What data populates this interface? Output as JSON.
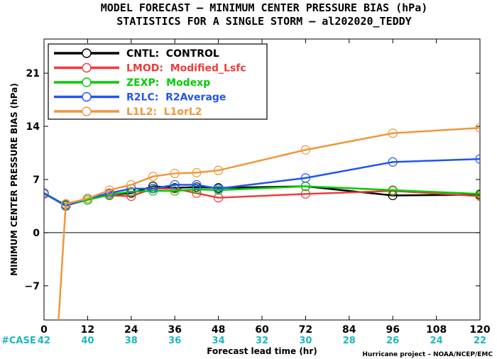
{
  "chart_data": {
    "type": "line",
    "title": "MODEL FORECAST – MINIMUM CENTER PRESSURE BIAS (hPa)",
    "subtitle": "STATISTICS FOR A SINGLE STORM – al202020_TEDDY",
    "xlabel": "Forecast lead time (hr)",
    "ylabel": "MINIMUM CENTER PRESSURE BIAS (hPa)",
    "xlim": [
      0,
      120
    ],
    "ylim": [
      -11.5,
      25.5
    ],
    "xticks": [
      0,
      12,
      24,
      36,
      48,
      60,
      72,
      84,
      96,
      108,
      120
    ],
    "yticks": [
      -7,
      0,
      7,
      14,
      21
    ],
    "ytick_labels": [
      "−7",
      "0",
      "7",
      "14",
      "21"
    ],
    "zero_line": true,
    "grid": false,
    "legend_position": "top-left",
    "case_label": "#CASE",
    "cases": [
      {
        "x": 0,
        "n": "42"
      },
      {
        "x": 12,
        "n": "40"
      },
      {
        "x": 24,
        "n": "38"
      },
      {
        "x": 36,
        "n": "36"
      },
      {
        "x": 48,
        "n": "34"
      },
      {
        "x": 60,
        "n": "32"
      },
      {
        "x": 72,
        "n": "30"
      },
      {
        "x": 84,
        "n": "28"
      },
      {
        "x": 96,
        "n": "26"
      },
      {
        "x": 108,
        "n": "24"
      },
      {
        "x": 120,
        "n": "22"
      }
    ],
    "series": [
      {
        "name": "CNTL:  CONTROL",
        "color": "#000000",
        "x": [
          0,
          6,
          12,
          18,
          24,
          30,
          36,
          42,
          48,
          72,
          96,
          120
        ],
        "y": [
          5.2,
          3.6,
          4.5,
          5.0,
          5.2,
          6.1,
          5.9,
          6.0,
          5.9,
          6.1,
          4.9,
          5.0
        ]
      },
      {
        "name": "LMOD:  Modified_Lsfc",
        "color": "#ee3b3b",
        "x": [
          0,
          6,
          12,
          18,
          24,
          30,
          36,
          42,
          48,
          72,
          96,
          120
        ],
        "y": [
          5.1,
          3.7,
          4.5,
          4.9,
          4.8,
          5.8,
          5.8,
          5.2,
          4.6,
          5.1,
          5.5,
          4.8
        ]
      },
      {
        "name": "ZEXP:  Modexp",
        "color": "#00cc00",
        "x": [
          0,
          6,
          12,
          18,
          24,
          30,
          36,
          42,
          48,
          72,
          96,
          120
        ],
        "y": [
          5.2,
          3.6,
          4.3,
          5.0,
          5.4,
          5.5,
          5.5,
          5.7,
          5.6,
          6.1,
          5.6,
          5.1
        ]
      },
      {
        "name": "R2LC:  R2Average",
        "color": "#2255ee",
        "x": [
          0,
          6,
          12,
          18,
          24,
          30,
          36,
          42,
          48,
          72,
          96,
          120
        ],
        "y": [
          5.2,
          3.5,
          4.5,
          5.2,
          5.8,
          5.8,
          6.3,
          6.3,
          5.8,
          7.2,
          9.3,
          9.7
        ]
      },
      {
        "name": "L1L2:  L1orL2",
        "color": "#f0963c",
        "x": [
          4,
          6,
          12,
          18,
          24,
          30,
          36,
          42,
          48,
          72,
          96,
          120
        ],
        "y": [
          -11.5,
          3.8,
          4.5,
          5.6,
          6.3,
          7.4,
          7.8,
          7.9,
          8.2,
          10.9,
          13.1,
          13.8
        ]
      }
    ]
  },
  "credit": "Hurricane project – NOAA/NCEP/EMC"
}
